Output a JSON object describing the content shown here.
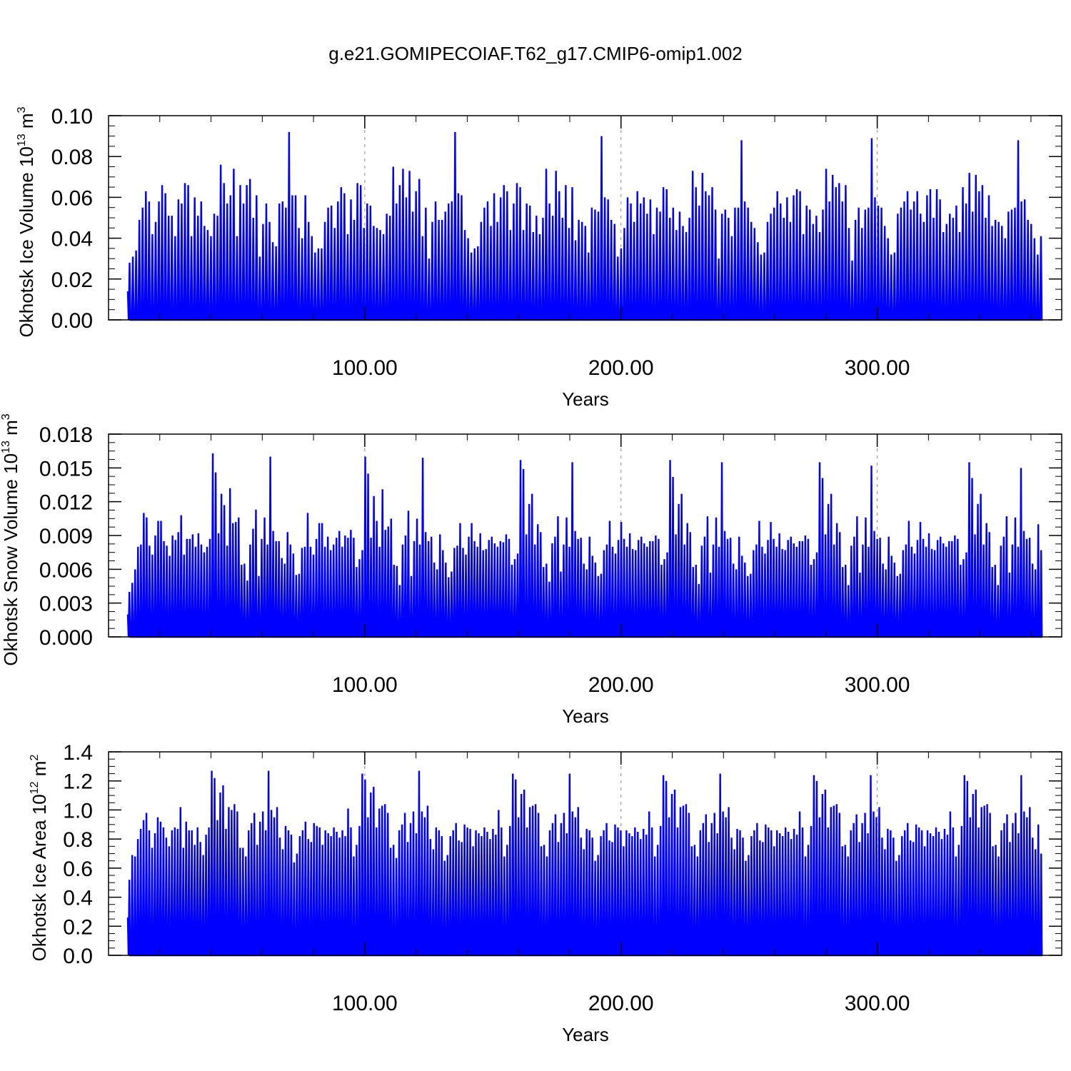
{
  "title": "g.e21.GOMIPECOIAF.T62_g17.CMIP6-omip1.002",
  "colors": {
    "series": "#0000ff",
    "axis": "#000000",
    "grid": "#888888"
  },
  "chart_data": [
    {
      "type": "line",
      "name": "ice-volume",
      "title": "g.e21.GOMIPECOIAF.T62_g17.CMIP6-omip1.002",
      "xlabel": "Years",
      "ylabel": {
        "base": "Okhotsk Ice Volume 10",
        "exp": "13",
        "unit": " m",
        "unit_exp": "3"
      },
      "xlim": [
        0,
        372
      ],
      "ylim": [
        0,
        0.1
      ],
      "xticks": [
        100,
        200,
        300
      ],
      "xtick_labels": [
        "100.00",
        "200.00",
        "300.00"
      ],
      "yticks": [
        0,
        0.02,
        0.04,
        0.06,
        0.08,
        0.1
      ],
      "ytick_labels": [
        "0.00",
        "0.02",
        "0.04",
        "0.06",
        "0.08",
        "0.10"
      ],
      "yminor_step": 0.005,
      "xminor_step": 20,
      "grid_x": [
        100,
        200,
        300
      ],
      "peaks_note": "annual cycle; annual maximum sea-ice volume per year, minimum ~0 each summer",
      "annual_peaks": [
        0.028,
        0.031,
        0.034,
        0.049,
        0.055,
        0.063,
        0.058,
        0.042,
        0.048,
        0.058,
        0.066,
        0.062,
        0.051,
        0.051,
        0.041,
        0.059,
        0.057,
        0.067,
        0.066,
        0.041,
        0.06,
        0.051,
        0.058,
        0.046,
        0.044,
        0.041,
        0.052,
        0.051,
        0.076,
        0.067,
        0.057,
        0.061,
        0.074,
        0.041,
        0.066,
        0.057,
        0.066,
        0.069,
        0.05,
        0.061,
        0.031,
        0.047,
        0.057,
        0.048,
        0.038,
        0.036,
        0.057,
        0.058,
        0.055,
        0.092,
        0.061,
        0.061,
        0.045,
        0.04,
        0.061,
        0.048,
        0.041,
        0.033,
        0.035,
        0.035,
        0.048,
        0.055,
        0.056,
        0.045,
        0.058,
        0.065,
        0.062,
        0.042,
        0.059,
        0.049,
        0.067,
        0.066,
        0.045,
        0.057,
        0.056,
        0.046,
        0.045,
        0.044,
        0.042,
        0.052,
        0.051,
        0.075,
        0.057,
        0.066,
        0.074,
        0.06,
        0.073,
        0.053,
        0.063,
        0.069,
        0.041,
        0.055,
        0.03,
        0.048,
        0.058,
        0.049,
        0.049,
        0.053,
        0.057,
        0.058,
        0.092,
        0.062,
        0.061,
        0.044,
        0.04,
        0.033,
        0.035,
        0.036,
        0.048,
        0.055,
        0.058,
        0.046,
        0.062,
        0.048,
        0.06,
        0.066,
        0.063,
        0.044,
        0.057,
        0.067,
        0.065,
        0.044,
        0.057,
        0.056,
        0.043,
        0.051,
        0.042,
        0.05,
        0.074,
        0.057,
        0.051,
        0.073,
        0.063,
        0.05,
        0.066,
        0.045,
        0.065,
        0.039,
        0.049,
        0.048,
        0.046,
        0.033,
        0.055,
        0.054,
        0.053,
        0.09,
        0.06,
        0.059,
        0.049,
        0.047,
        0.031,
        0.035,
        0.045,
        0.06,
        0.057,
        0.048,
        0.063,
        0.057,
        0.06,
        0.052,
        0.059,
        0.042,
        0.055,
        0.053,
        0.065,
        0.064,
        0.05,
        0.055,
        0.044,
        0.053,
        0.046,
        0.043,
        0.05,
        0.073,
        0.065,
        0.056,
        0.072,
        0.063,
        0.061,
        0.065,
        0.054,
        0.03,
        0.052,
        0.054,
        0.05,
        0.041,
        0.055,
        0.055,
        0.088,
        0.058,
        0.055,
        0.048,
        0.045,
        0.038,
        0.032,
        0.033,
        0.048,
        0.052,
        0.055,
        0.063,
        0.057,
        0.05,
        0.06,
        0.048,
        0.061,
        0.064,
        0.063,
        0.042,
        0.056,
        0.054,
        0.047,
        0.051,
        0.043,
        0.054,
        0.074,
        0.058,
        0.071,
        0.065,
        0.067,
        0.058,
        0.066,
        0.045,
        0.029,
        0.049,
        0.055,
        0.045,
        0.054,
        0.055,
        0.089,
        0.06,
        0.056,
        0.055,
        0.046,
        0.04,
        0.032,
        0.033,
        0.052,
        0.055,
        0.058,
        0.063,
        0.054,
        0.058,
        0.063,
        0.052,
        0.048,
        0.061,
        0.064,
        0.05,
        0.064,
        0.059,
        0.043,
        0.047,
        0.052,
        0.05,
        0.056,
        0.043,
        0.065,
        0.057,
        0.072,
        0.053,
        0.071,
        0.063,
        0.066,
        0.05,
        0.061,
        0.046,
        0.049,
        0.048,
        0.046,
        0.04,
        0.053,
        0.054,
        0.055,
        0.088,
        0.058,
        0.059,
        0.049,
        0.047,
        0.04,
        0.032,
        0.041
      ]
    },
    {
      "type": "line",
      "name": "snow-volume",
      "xlabel": "Years",
      "ylabel": {
        "base": "Okhotsk Snow Volume 10",
        "exp": "13",
        "unit": " m",
        "unit_exp": "3"
      },
      "xlim": [
        0,
        372
      ],
      "ylim": [
        0,
        0.018
      ],
      "xticks": [
        100,
        200,
        300
      ],
      "xtick_labels": [
        "100.00",
        "200.00",
        "300.00"
      ],
      "yticks": [
        0,
        0.003,
        0.006,
        0.009,
        0.012,
        0.015,
        0.018
      ],
      "ytick_labels": [
        "0.000",
        "0.003",
        "0.006",
        "0.009",
        "0.012",
        "0.015",
        "0.018"
      ],
      "yminor_step": 0.00075,
      "xminor_step": 20,
      "grid_x": [
        100,
        200,
        300
      ],
      "annual_peaks": [
        0.004,
        0.0048,
        0.006,
        0.008,
        0.0082,
        0.011,
        0.0106,
        0.0081,
        0.0073,
        0.009,
        0.0103,
        0.0103,
        0.0085,
        0.0081,
        0.0072,
        0.009,
        0.0086,
        0.0093,
        0.0108,
        0.0073,
        0.0087,
        0.0087,
        0.0091,
        0.008,
        0.0092,
        0.0082,
        0.0075,
        0.008,
        0.0087,
        0.0163,
        0.0146,
        0.0092,
        0.0127,
        0.0117,
        0.0081,
        0.0132,
        0.0101,
        0.0102,
        0.0106,
        0.0064,
        0.0065,
        0.005,
        0.0082,
        0.0096,
        0.0113,
        0.0054,
        0.0087,
        0.0106,
        0.0082,
        0.016,
        0.0094,
        0.0085,
        0.0085,
        0.007,
        0.0065,
        0.0093,
        0.0082,
        0.0074,
        0.0055,
        0.0056,
        0.0079,
        0.008,
        0.011,
        0.008,
        0.0073,
        0.0087,
        0.0101,
        0.0101,
        0.008,
        0.0089,
        0.0077,
        0.0082,
        0.0088,
        0.0094,
        0.008,
        0.009,
        0.0088,
        0.0095,
        0.0088,
        0.0062,
        0.0069,
        0.0077,
        0.016,
        0.0145,
        0.0088,
        0.0125,
        0.0103,
        0.008,
        0.0131,
        0.0095,
        0.0098,
        0.0105,
        0.0064,
        0.0063,
        0.0046,
        0.0082,
        0.009,
        0.0112,
        0.0054,
        0.0085,
        0.0105,
        0.0082,
        0.0159,
        0.0093,
        0.0085,
        0.0089,
        0.0066,
        0.006,
        0.0091,
        0.0077,
        0.0066,
        0.0053,
        0.0058,
        0.0079,
        0.0081,
        0.0101,
        0.0079,
        0.0073,
        0.0089,
        0.0101,
        0.0085,
        0.008,
        0.0092,
        0.0077,
        0.0078,
        0.0086,
        0.0089,
        0.0083,
        0.008,
        0.0085,
        0.0084,
        0.0091,
        0.0087,
        0.0064,
        0.0069,
        0.0074,
        0.0157,
        0.0149,
        0.0091,
        0.0118,
        0.0127,
        0.0082,
        0.01,
        0.0093,
        0.0062,
        0.0065,
        0.0049,
        0.0083,
        0.0089,
        0.0107,
        0.0058,
        0.0082,
        0.0106,
        0.008,
        0.0155,
        0.0094,
        0.0087,
        0.0088,
        0.0065,
        0.006,
        0.0089,
        0.0072,
        0.0066,
        0.0054,
        0.0056,
        0.0077,
        0.0082,
        0.0103,
        0.008,
        0.0074,
        0.0086,
        0.0102,
        0.0087,
        0.008,
        0.0092,
        0.0078,
        0.0077,
        0.0086,
        0.0089,
        0.0083,
        0.008,
        0.0085,
        0.0085,
        0.009,
        0.0087,
        0.0064,
        0.0069,
        0.0075,
        0.0157,
        0.0142,
        0.0091,
        0.0118,
        0.0127,
        0.0082,
        0.0101,
        0.0093,
        0.0062,
        0.0064,
        0.0047,
        0.0081,
        0.0089,
        0.0107,
        0.0057,
        0.0082,
        0.0106,
        0.008,
        0.0155,
        0.0094,
        0.0087,
        0.0088,
        0.0065,
        0.006,
        0.0089,
        0.0072,
        0.0066,
        0.0054,
        0.0056,
        0.0077,
        0.0082,
        0.0103,
        0.008,
        0.0074,
        0.0086,
        0.0102,
        0.0087,
        0.008,
        0.0092,
        0.0078,
        0.0077,
        0.0086,
        0.0089,
        0.0083,
        0.008,
        0.0085,
        0.0085,
        0.009,
        0.0087,
        0.0064,
        0.0069,
        0.0075,
        0.0155,
        0.0141,
        0.0091,
        0.0118,
        0.0127,
        0.0082,
        0.0101,
        0.0093,
        0.0062,
        0.0064,
        0.0046,
        0.0081,
        0.0089,
        0.0107,
        0.0057,
        0.0082,
        0.0106,
        0.008,
        0.0152,
        0.0094,
        0.0087,
        0.0088,
        0.0065,
        0.006,
        0.0089,
        0.0072,
        0.0066,
        0.0054,
        0.0056,
        0.0077,
        0.0082,
        0.0103,
        0.008,
        0.0074,
        0.0086,
        0.0102,
        0.0087,
        0.008,
        0.0092,
        0.0078,
        0.0077,
        0.0086,
        0.0089,
        0.0083,
        0.008,
        0.0085,
        0.0085,
        0.009,
        0.0087,
        0.0064,
        0.0069,
        0.0075,
        0.0155,
        0.0141,
        0.0091,
        0.0118,
        0.0127,
        0.0082,
        0.0101,
        0.0093,
        0.0062,
        0.0064,
        0.0046,
        0.0081,
        0.0089,
        0.0107,
        0.0057,
        0.0082,
        0.0106,
        0.008,
        0.015,
        0.0094,
        0.0087,
        0.0088,
        0.0065,
        0.006,
        0.01,
        0.0077
      ]
    },
    {
      "type": "line",
      "name": "ice-area",
      "xlabel": "Years",
      "ylabel": {
        "base": "Okhotsk Ice Area 10",
        "exp": "12",
        "unit": " m",
        "unit_exp": "2"
      },
      "xlim": [
        0,
        372
      ],
      "ylim": [
        0,
        1.4
      ],
      "xticks": [
        100,
        200,
        300
      ],
      "xtick_labels": [
        "100.00",
        "200.00",
        "300.00"
      ],
      "yticks": [
        0,
        0.2,
        0.4,
        0.6,
        0.8,
        1.0,
        1.2,
        1.4
      ],
      "ytick_labels": [
        "0.0",
        "0.2",
        "0.4",
        "0.6",
        "0.8",
        "1.0",
        "1.2",
        "1.4"
      ],
      "yminor_step": 0.05,
      "xminor_step": 20,
      "grid_x": [
        100,
        200,
        300
      ],
      "annual_peaks": [
        0.52,
        0.69,
        0.68,
        0.8,
        0.87,
        0.93,
        0.98,
        0.86,
        0.74,
        0.84,
        0.95,
        0.92,
        0.88,
        0.81,
        0.75,
        0.86,
        0.88,
        0.87,
        1.02,
        0.74,
        0.92,
        0.86,
        0.86,
        0.76,
        0.88,
        0.78,
        0.69,
        0.83,
        0.88,
        1.27,
        1.22,
        0.93,
        1.12,
        1.17,
        0.87,
        1.02,
        1.0,
        1.04,
        0.99,
        0.74,
        0.74,
        0.68,
        0.86,
        0.91,
        0.98,
        0.76,
        0.92,
        0.99,
        0.86,
        1.27,
        1.0,
        0.95,
        1.02,
        0.81,
        0.73,
        0.89,
        0.86,
        0.83,
        0.64,
        0.7,
        0.82,
        0.86,
        0.92,
        0.8,
        0.78,
        0.91,
        0.89,
        0.88,
        0.76,
        0.86,
        0.84,
        0.82,
        0.88,
        0.85,
        0.81,
        0.86,
        0.82,
        1.01,
        0.88,
        0.68,
        0.76,
        0.89,
        1.25,
        1.21,
        0.95,
        1.12,
        1.16,
        0.88,
        1.01,
        1.03,
        1.04,
        0.98,
        0.74,
        0.76,
        0.67,
        0.86,
        0.9,
        0.98,
        0.78,
        0.91,
        0.99,
        0.84,
        1.27,
        0.99,
        0.95,
        1.03,
        0.8,
        0.73,
        0.88,
        0.86,
        0.82,
        0.65,
        0.69,
        0.82,
        0.86,
        0.91,
        0.79,
        0.78,
        0.9,
        0.88,
        0.87,
        0.75,
        0.86,
        0.84,
        0.82,
        0.88,
        0.85,
        0.8,
        0.87,
        0.83,
        1.0,
        0.88,
        0.68,
        0.76,
        0.89,
        1.25,
        1.21,
        0.95,
        1.11,
        1.14,
        0.88,
        1.02,
        1.03,
        1.04,
        0.98,
        0.75,
        0.76,
        0.68,
        0.86,
        0.91,
        0.97,
        0.78,
        0.91,
        0.98,
        0.84,
        1.25,
        0.99,
        0.95,
        1.02,
        0.81,
        0.73,
        0.87,
        0.86,
        0.81,
        0.65,
        0.69,
        0.82,
        0.86,
        0.91,
        0.79,
        0.78,
        0.9,
        0.88,
        0.86,
        0.75,
        0.86,
        0.84,
        0.82,
        0.88,
        0.85,
        0.8,
        0.87,
        0.83,
        0.99,
        0.88,
        0.68,
        0.76,
        0.89,
        1.24,
        1.2,
        0.95,
        1.11,
        1.14,
        0.88,
        1.02,
        1.03,
        1.04,
        0.98,
        0.75,
        0.76,
        0.68,
        0.86,
        0.91,
        0.97,
        0.78,
        0.91,
        0.98,
        0.84,
        1.25,
        0.99,
        0.95,
        1.02,
        0.81,
        0.73,
        0.87,
        0.86,
        0.81,
        0.65,
        0.69,
        0.82,
        0.86,
        0.91,
        0.79,
        0.78,
        0.9,
        0.88,
        0.86,
        0.75,
        0.86,
        0.84,
        0.82,
        0.88,
        0.85,
        0.8,
        0.87,
        0.83,
        0.99,
        0.88,
        0.68,
        0.76,
        0.89,
        1.24,
        1.2,
        0.95,
        1.11,
        1.14,
        0.88,
        1.02,
        1.03,
        1.04,
        0.98,
        0.75,
        0.76,
        0.68,
        0.86,
        0.91,
        0.97,
        0.78,
        0.91,
        0.98,
        0.84,
        1.24,
        0.99,
        0.95,
        1.02,
        0.81,
        0.73,
        0.87,
        0.86,
        0.81,
        0.65,
        0.69,
        0.82,
        0.86,
        0.91,
        0.79,
        0.78,
        0.9,
        0.88,
        0.86,
        0.75,
        0.86,
        0.84,
        0.82,
        0.88,
        0.85,
        0.8,
        0.87,
        0.83,
        0.99,
        0.88,
        0.68,
        0.76,
        0.89,
        1.24,
        1.2,
        0.95,
        1.11,
        1.14,
        0.88,
        1.02,
        1.03,
        1.04,
        0.98,
        0.75,
        0.76,
        0.68,
        0.86,
        0.91,
        0.97,
        0.78,
        0.91,
        0.98,
        0.84,
        1.24,
        0.99,
        0.95,
        1.02,
        0.81,
        0.73,
        0.9,
        0.7
      ]
    }
  ]
}
